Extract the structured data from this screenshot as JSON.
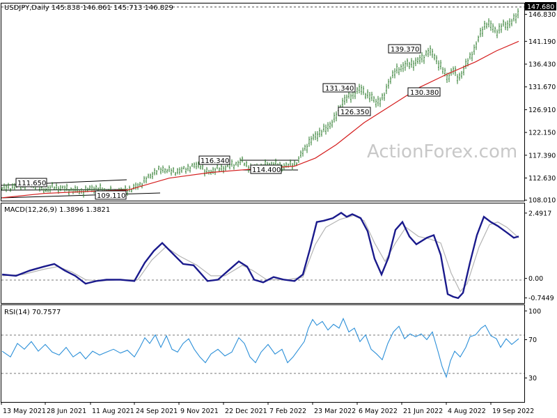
{
  "chart_data": [
    {
      "type": "candlestick",
      "title": "USDJPY,Daily 145.838 146.861 145.713 146.829",
      "watermark": "ActionForex.com",
      "y_ticks": [
        "146.830",
        "141.190",
        "136.430",
        "131.670",
        "126.910",
        "122.150",
        "117.390",
        "112.630",
        "108.010"
      ],
      "y_tick_values": [
        146.83,
        141.19,
        136.43,
        131.67,
        126.91,
        122.15,
        117.39,
        112.63,
        108.01
      ],
      "ylim": [
        107.9,
        149.1
      ],
      "current_label": "147.680",
      "current_value": 147.68,
      "annotations": [
        "111.650",
        "109.110",
        "116.340",
        "114.400",
        "139.370",
        "131.340",
        "126.350",
        "130.380"
      ],
      "annotation_values": [
        111.65,
        109.11,
        116.34,
        114.4,
        139.37,
        131.34,
        126.35,
        130.38
      ],
      "price_path": [
        [
          0,
          110.4
        ],
        [
          15,
          110.8
        ],
        [
          30,
          111.2
        ],
        [
          45,
          111.3
        ],
        [
          60,
          110.2
        ],
        [
          75,
          110.7
        ],
        [
          90,
          110.4
        ],
        [
          105,
          110.0
        ],
        [
          118,
          109.8
        ],
        [
          130,
          110.6
        ],
        [
          145,
          110.1
        ],
        [
          160,
          109.6
        ],
        [
          175,
          110.0
        ],
        [
          190,
          110.5
        ],
        [
          205,
          112.0
        ],
        [
          218,
          113.8
        ],
        [
          232,
          114.5
        ],
        [
          245,
          113.9
        ],
        [
          258,
          114.2
        ],
        [
          270,
          114.9
        ],
        [
          285,
          115.4
        ],
        [
          292,
          113.6
        ],
        [
          300,
          114.1
        ],
        [
          315,
          114.6
        ],
        [
          330,
          115.3
        ],
        [
          345,
          116.1
        ],
        [
          358,
          114.6
        ],
        [
          372,
          115.0
        ],
        [
          387,
          115.6
        ],
        [
          402,
          115.1
        ],
        [
          415,
          115.3
        ],
        [
          425,
          116.0
        ],
        [
          432,
          118.2
        ],
        [
          440,
          119.8
        ],
        [
          452,
          121.7
        ],
        [
          465,
          122.8
        ],
        [
          478,
          125.0
        ],
        [
          490,
          128.8
        ],
        [
          500,
          129.6
        ],
        [
          508,
          130.6
        ],
        [
          515,
          131.2
        ],
        [
          525,
          130.0
        ],
        [
          538,
          128.5
        ],
        [
          548,
          129.2
        ],
        [
          556,
          133.0
        ],
        [
          565,
          134.8
        ],
        [
          575,
          135.9
        ],
        [
          585,
          136.4
        ],
        [
          595,
          136.8
        ],
        [
          605,
          137.8
        ],
        [
          612,
          139.1
        ],
        [
          620,
          138.4
        ],
        [
          630,
          135.8
        ],
        [
          640,
          133.6
        ],
        [
          648,
          135.2
        ],
        [
          655,
          133.4
        ],
        [
          663,
          135.1
        ],
        [
          672,
          137.9
        ],
        [
          680,
          139.8
        ],
        [
          688,
          143.2
        ],
        [
          695,
          144.9
        ],
        [
          703,
          144.3
        ],
        [
          712,
          143.1
        ],
        [
          720,
          144.6
        ],
        [
          728,
          144.8
        ],
        [
          735,
          145.6
        ],
        [
          742,
          147.2
        ]
      ],
      "ma_path": [
        [
          0,
          108.5
        ],
        [
          60,
          109.4
        ],
        [
          120,
          109.8
        ],
        [
          180,
          110.1
        ],
        [
          240,
          112.6
        ],
        [
          300,
          113.8
        ],
        [
          360,
          114.5
        ],
        [
          420,
          115.1
        ],
        [
          450,
          116.8
        ],
        [
          480,
          119.6
        ],
        [
          520,
          124.2
        ],
        [
          560,
          127.9
        ],
        [
          600,
          131.6
        ],
        [
          640,
          134.4
        ],
        [
          680,
          136.9
        ],
        [
          710,
          139.2
        ],
        [
          742,
          141.2
        ]
      ]
    },
    {
      "type": "line",
      "title": "MACD(12,26,9) 1.3896 1.3821",
      "y_ticks": [
        "2.4917",
        "0.00",
        "-0.7449"
      ],
      "y_tick_values": [
        2.4917,
        0.0,
        -0.7449
      ],
      "ylim": [
        -0.94,
        2.86
      ],
      "series": [
        {
          "values": [
            [
              0,
              0.15
            ],
            [
              20,
              0.1
            ],
            [
              40,
              0.3
            ],
            [
              60,
              0.45
            ],
            [
              75,
              0.55
            ],
            [
              90,
              0.3
            ],
            [
              105,
              0.1
            ],
            [
              120,
              -0.2
            ],
            [
              135,
              -0.1
            ],
            [
              150,
              -0.05
            ],
            [
              170,
              -0.05
            ],
            [
              190,
              -0.1
            ],
            [
              205,
              0.6
            ],
            [
              218,
              1.05
            ],
            [
              230,
              1.35
            ],
            [
              245,
              0.95
            ],
            [
              260,
              0.55
            ],
            [
              275,
              0.5
            ],
            [
              285,
              0.2
            ],
            [
              295,
              -0.1
            ],
            [
              310,
              -0.05
            ],
            [
              325,
              0.3
            ],
            [
              340,
              0.65
            ],
            [
              352,
              0.45
            ],
            [
              362,
              -0.05
            ],
            [
              375,
              -0.15
            ],
            [
              390,
              0.05
            ],
            [
              405,
              -0.05
            ],
            [
              420,
              -0.1
            ],
            [
              432,
              0.15
            ],
            [
              442,
              1.1
            ],
            [
              452,
              2.15
            ],
            [
              462,
              2.2
            ],
            [
              475,
              2.3
            ],
            [
              487,
              2.5
            ],
            [
              495,
              2.35
            ],
            [
              503,
              2.45
            ],
            [
              515,
              2.3
            ],
            [
              525,
              1.8
            ],
            [
              535,
              0.75
            ],
            [
              545,
              0.15
            ],
            [
              555,
              0.8
            ],
            [
              565,
              1.85
            ],
            [
              575,
              2.15
            ],
            [
              585,
              1.6
            ],
            [
              595,
              1.3
            ],
            [
              610,
              1.55
            ],
            [
              620,
              1.65
            ],
            [
              630,
              0.9
            ],
            [
              640,
              -0.6
            ],
            [
              648,
              -0.7
            ],
            [
              655,
              -0.75
            ],
            [
              662,
              -0.55
            ],
            [
              672,
              0.6
            ],
            [
              682,
              1.65
            ],
            [
              692,
              2.35
            ],
            [
              702,
              2.15
            ],
            [
              712,
              2.0
            ],
            [
              725,
              1.75
            ],
            [
              735,
              1.55
            ],
            [
              742,
              1.6
            ]
          ]
        },
        {
          "values": [
            [
              0,
              0.1
            ],
            [
              30,
              0.15
            ],
            [
              60,
              0.35
            ],
            [
              80,
              0.45
            ],
            [
              100,
              0.25
            ],
            [
              120,
              -0.05
            ],
            [
              140,
              -0.1
            ],
            [
              170,
              -0.05
            ],
            [
              195,
              -0.05
            ],
            [
              215,
              0.7
            ],
            [
              235,
              1.2
            ],
            [
              255,
              0.85
            ],
            [
              280,
              0.5
            ],
            [
              300,
              0.1
            ],
            [
              320,
              0.1
            ],
            [
              345,
              0.5
            ],
            [
              360,
              0.3
            ],
            [
              380,
              -0.05
            ],
            [
              410,
              -0.05
            ],
            [
              432,
              0.05
            ],
            [
              450,
              1.3
            ],
            [
              465,
              1.95
            ],
            [
              485,
              2.25
            ],
            [
              505,
              2.4
            ],
            [
              520,
              2.2
            ],
            [
              535,
              1.35
            ],
            [
              550,
              0.65
            ],
            [
              565,
              1.35
            ],
            [
              580,
              1.95
            ],
            [
              598,
              1.6
            ],
            [
              615,
              1.5
            ],
            [
              630,
              1.35
            ],
            [
              645,
              0.2
            ],
            [
              658,
              -0.5
            ],
            [
              668,
              -0.2
            ],
            [
              685,
              1.2
            ],
            [
              700,
              2.05
            ],
            [
              712,
              2.15
            ],
            [
              725,
              1.95
            ],
            [
              742,
              1.55
            ]
          ]
        }
      ]
    },
    {
      "type": "line",
      "title": "RSI(14) 70.7577",
      "y_ticks": [
        "100",
        "70",
        "30"
      ],
      "y_tick_values": [
        100,
        70,
        30
      ],
      "ylim": [
        5,
        106
      ],
      "x_ticks": [
        "13 May 2021",
        "28 Jun 2021",
        "11 Aug 2021",
        "24 Sep 2021",
        "9 Nov 2021",
        "22 Dec 2021",
        "7 Feb 2022",
        "23 Mar 2022",
        "6 May 2022",
        "21 Jun 2022",
        "4 Aug 2022",
        "19 Sep 2022"
      ],
      "series": [
        {
          "values": [
            [
              0,
              58
            ],
            [
              12,
              52
            ],
            [
              22,
              66
            ],
            [
              32,
              60
            ],
            [
              42,
              68
            ],
            [
              52,
              58
            ],
            [
              62,
              65
            ],
            [
              72,
              57
            ],
            [
              82,
              54
            ],
            [
              92,
              62
            ],
            [
              102,
              52
            ],
            [
              112,
              57
            ],
            [
              120,
              50
            ],
            [
              130,
              58
            ],
            [
              140,
              54
            ],
            [
              150,
              57
            ],
            [
              160,
              60
            ],
            [
              170,
              56
            ],
            [
              180,
              59
            ],
            [
              190,
              52
            ],
            [
              198,
              62
            ],
            [
              205,
              72
            ],
            [
              212,
              66
            ],
            [
              220,
              75
            ],
            [
              228,
              62
            ],
            [
              236,
              74
            ],
            [
              244,
              60
            ],
            [
              252,
              57
            ],
            [
              260,
              66
            ],
            [
              268,
              71
            ],
            [
              276,
              60
            ],
            [
              284,
              52
            ],
            [
              292,
              46
            ],
            [
              300,
              55
            ],
            [
              310,
              60
            ],
            [
              320,
              53
            ],
            [
              330,
              57
            ],
            [
              340,
              72
            ],
            [
              348,
              66
            ],
            [
              356,
              52
            ],
            [
              364,
              46
            ],
            [
              372,
              57
            ],
            [
              382,
              65
            ],
            [
              392,
              55
            ],
            [
              402,
              60
            ],
            [
              410,
              46
            ],
            [
              418,
              52
            ],
            [
              426,
              60
            ],
            [
              434,
              68
            ],
            [
              440,
              82
            ],
            [
              446,
              91
            ],
            [
              452,
              85
            ],
            [
              460,
              89
            ],
            [
              468,
              80
            ],
            [
              476,
              86
            ],
            [
              484,
              82
            ],
            [
              490,
              92
            ],
            [
              498,
              78
            ],
            [
              506,
              82
            ],
            [
              514,
              68
            ],
            [
              522,
              75
            ],
            [
              530,
              60
            ],
            [
              538,
              55
            ],
            [
              546,
              49
            ],
            [
              554,
              66
            ],
            [
              562,
              78
            ],
            [
              570,
              84
            ],
            [
              578,
              71
            ],
            [
              586,
              76
            ],
            [
              594,
              73
            ],
            [
              602,
              76
            ],
            [
              610,
              70
            ],
            [
              618,
              78
            ],
            [
              626,
              58
            ],
            [
              632,
              42
            ],
            [
              638,
              31
            ],
            [
              644,
              48
            ],
            [
              650,
              58
            ],
            [
              658,
              52
            ],
            [
              666,
              62
            ],
            [
              672,
              73
            ],
            [
              680,
              75
            ],
            [
              688,
              82
            ],
            [
              694,
              85
            ],
            [
              702,
              74
            ],
            [
              710,
              71
            ],
            [
              716,
              62
            ],
            [
              724,
              71
            ],
            [
              732,
              65
            ],
            [
              742,
              71
            ]
          ]
        }
      ]
    }
  ]
}
